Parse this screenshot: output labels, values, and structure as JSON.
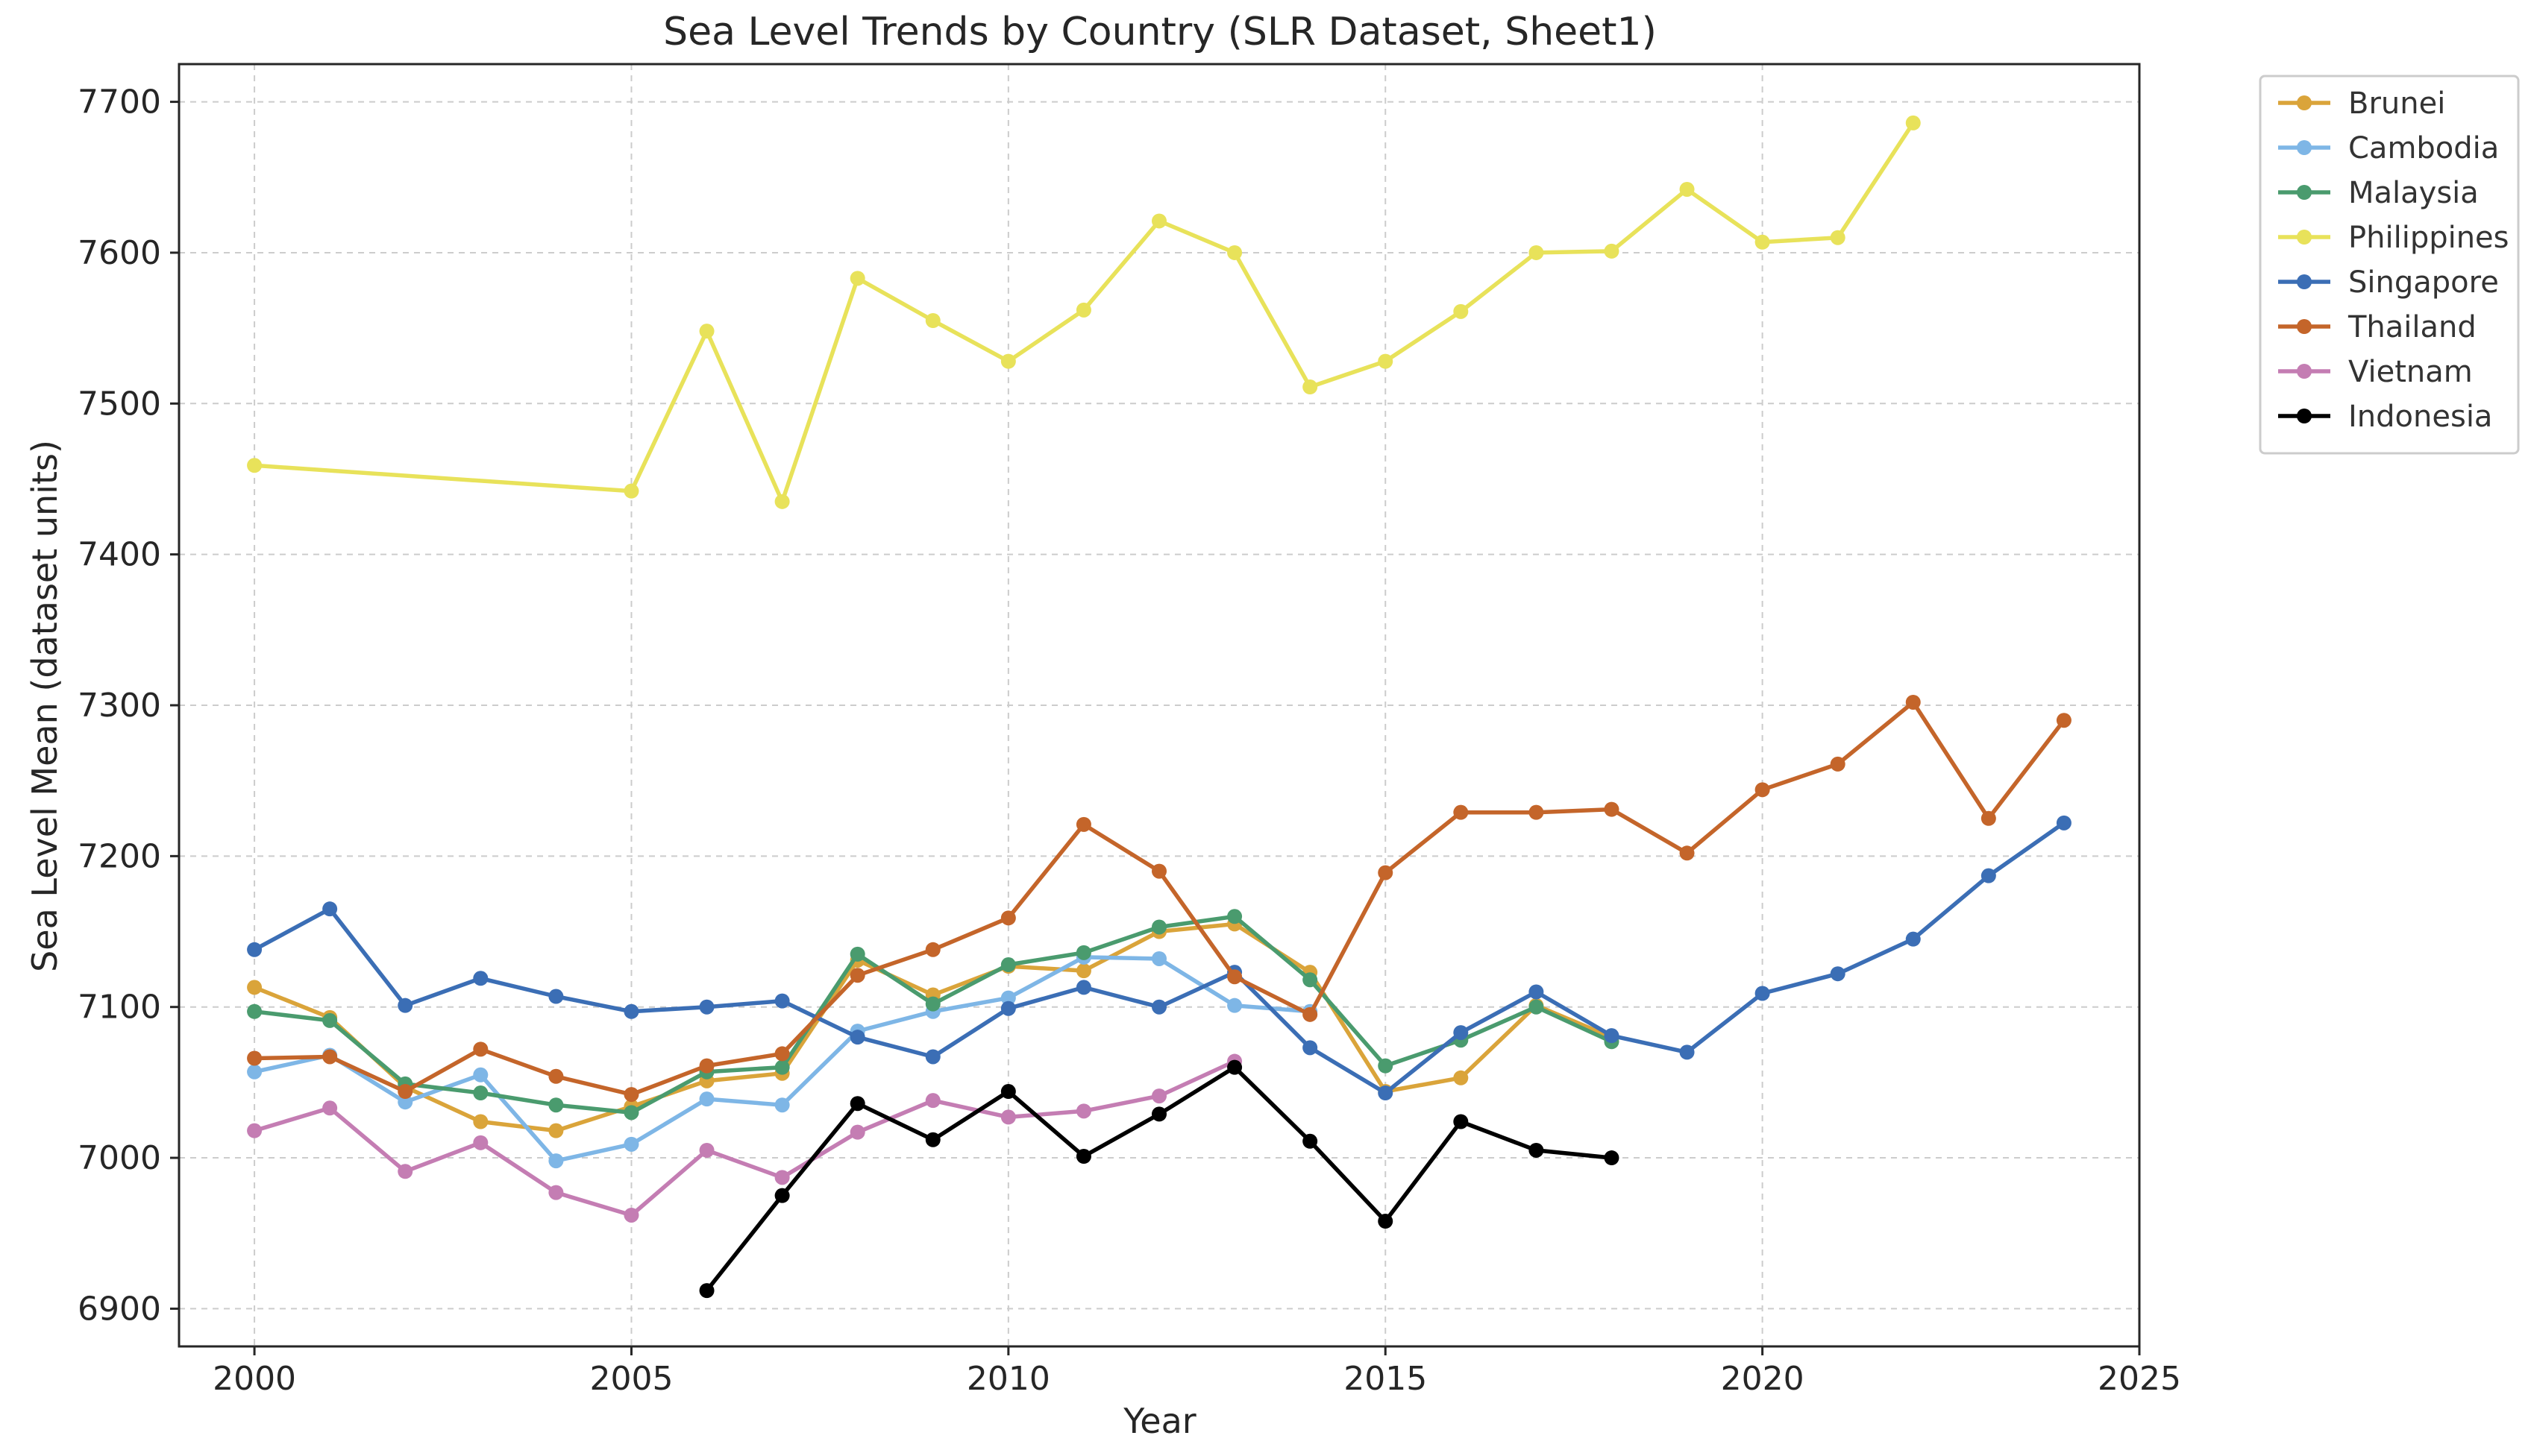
{
  "chart_data": {
    "type": "line",
    "title": "Sea Level Trends by Country (SLR Dataset, Sheet1)",
    "xlabel": "Year",
    "ylabel": "Sea Level Mean (dataset units)",
    "xlim": [
      1999,
      2025
    ],
    "ylim": [
      6875,
      7725
    ],
    "xticks": [
      2000,
      2005,
      2010,
      2015,
      2020,
      2025
    ],
    "yticks": [
      6900,
      7000,
      7100,
      7200,
      7300,
      7400,
      7500,
      7600,
      7700
    ],
    "grid": true,
    "legend_position": "outside-top-right",
    "series": [
      {
        "name": "Brunei",
        "color": "#DAA43A",
        "x": [
          2000,
          2001,
          2002,
          2003,
          2004,
          2005,
          2006,
          2007,
          2008,
          2009,
          2010,
          2011,
          2012,
          2013,
          2014,
          2015,
          2016,
          2017,
          2018
        ],
        "y": [
          7113,
          7093,
          7047,
          7024,
          7018,
          7034,
          7051,
          7056,
          7131,
          7108,
          7127,
          7124,
          7150,
          7155,
          7123,
          7044,
          7053,
          7101,
          7080
        ]
      },
      {
        "name": "Cambodia",
        "color": "#7EB6E6",
        "x": [
          2000,
          2001,
          2002,
          2003,
          2004,
          2005,
          2006,
          2007,
          2008,
          2009,
          2010,
          2011,
          2012,
          2013,
          2014
        ],
        "y": [
          7057,
          7068,
          7037,
          7055,
          6998,
          7009,
          7039,
          7035,
          7084,
          7097,
          7106,
          7133,
          7132,
          7101,
          7097
        ]
      },
      {
        "name": "Malaysia",
        "color": "#4A9B6E",
        "x": [
          2000,
          2001,
          2002,
          2003,
          2004,
          2005,
          2006,
          2007,
          2008,
          2009,
          2010,
          2011,
          2012,
          2013,
          2014,
          2015,
          2016,
          2017,
          2018
        ],
        "y": [
          7097,
          7091,
          7049,
          7043,
          7035,
          7030,
          7057,
          7060,
          7135,
          7102,
          7128,
          7136,
          7153,
          7160,
          7118,
          7061,
          7078,
          7100,
          7077
        ]
      },
      {
        "name": "Philippines",
        "color": "#E8E25A",
        "x": [
          2000,
          2005,
          2006,
          2007,
          2008,
          2009,
          2010,
          2011,
          2012,
          2013,
          2014,
          2015,
          2016,
          2017,
          2018,
          2019,
          2020,
          2021,
          2022
        ],
        "y": [
          7459,
          7442,
          7548,
          7435,
          7583,
          7555,
          7528,
          7562,
          7621,
          7600,
          7511,
          7528,
          7561,
          7600,
          7601,
          7642,
          7607,
          7610,
          7686
        ]
      },
      {
        "name": "Singapore",
        "color": "#3B6EB5",
        "x": [
          2000,
          2001,
          2002,
          2003,
          2004,
          2005,
          2006,
          2007,
          2008,
          2009,
          2010,
          2011,
          2012,
          2013,
          2014,
          2015,
          2016,
          2017,
          2018,
          2019,
          2020,
          2021,
          2022,
          2023,
          2024
        ],
        "y": [
          7138,
          7165,
          7101,
          7119,
          7107,
          7097,
          7100,
          7104,
          7080,
          7067,
          7099,
          7113,
          7100,
          7123,
          7073,
          7043,
          7083,
          7110,
          7081,
          7070,
          7109,
          7122,
          7145,
          7187,
          7222
        ]
      },
      {
        "name": "Thailand",
        "color": "#C4652A",
        "x": [
          2000,
          2001,
          2002,
          2003,
          2004,
          2005,
          2006,
          2007,
          2008,
          2009,
          2010,
          2011,
          2012,
          2013,
          2014,
          2015,
          2016,
          2017,
          2018,
          2019,
          2020,
          2021,
          2022,
          2023,
          2024
        ],
        "y": [
          7066,
          7067,
          7044,
          7072,
          7054,
          7042,
          7061,
          7069,
          7121,
          7138,
          7159,
          7221,
          7190,
          7120,
          7095,
          7189,
          7229,
          7229,
          7231,
          7202,
          7244,
          7261,
          7302,
          7225,
          7290
        ]
      },
      {
        "name": "Vietnam",
        "color": "#C47DB3",
        "x": [
          2000,
          2001,
          2002,
          2003,
          2004,
          2005,
          2006,
          2007,
          2008,
          2009,
          2010,
          2011,
          2012,
          2013
        ],
        "y": [
          7018,
          7033,
          6991,
          7010,
          6977,
          6962,
          7005,
          6987,
          7017,
          7038,
          7027,
          7031,
          7041,
          7064
        ]
      },
      {
        "name": "Indonesia",
        "color": "#000000",
        "x": [
          2006,
          2007,
          2008,
          2009,
          2010,
          2011,
          2012,
          2013,
          2014,
          2015,
          2016,
          2017,
          2018
        ],
        "y": [
          6912,
          6975,
          7036,
          7012,
          7044,
          7001,
          7029,
          7060,
          7011,
          6958,
          7024,
          7005,
          7000
        ]
      }
    ]
  }
}
